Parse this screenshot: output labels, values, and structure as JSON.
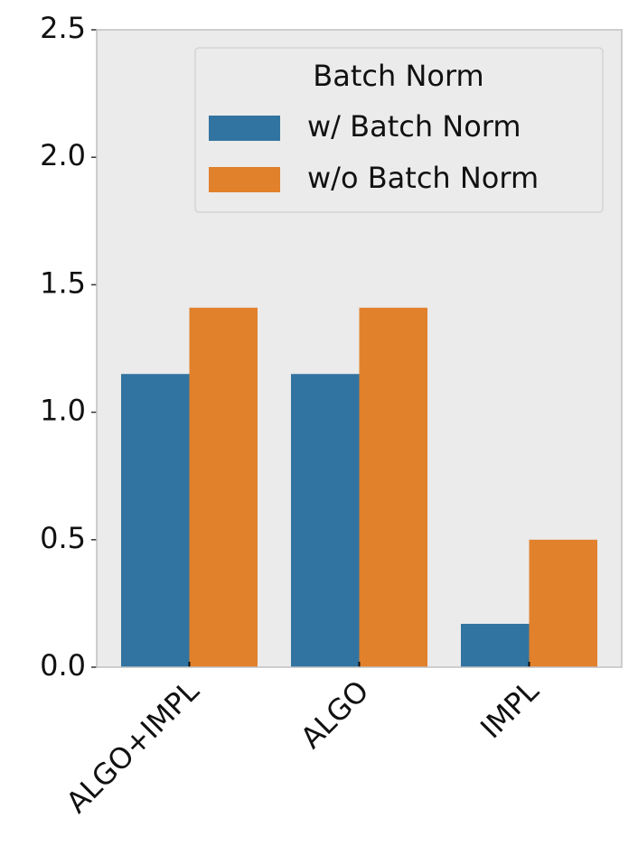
{
  "chart_data": {
    "type": "bar",
    "categories": [
      "ALGO+IMPL",
      "ALGO",
      "IMPL"
    ],
    "series": [
      {
        "name": "w/ Batch Norm",
        "color": "#3274a1",
        "values": [
          1.15,
          1.15,
          0.17
        ]
      },
      {
        "name": "w/o Batch Norm",
        "color": "#e1812c",
        "values": [
          1.41,
          1.41,
          0.5
        ]
      }
    ],
    "legend_title": "Batch Norm",
    "legend_position": "upper right",
    "ylim": [
      0,
      2.5
    ],
    "yticks": [
      {
        "value": 0,
        "label": "0.0"
      },
      0.5,
      {
        "value": 1,
        "label": "1.0"
      },
      1.5,
      {
        "value": 2,
        "label": "2.0"
      },
      2.5
    ],
    "grid": false
  }
}
